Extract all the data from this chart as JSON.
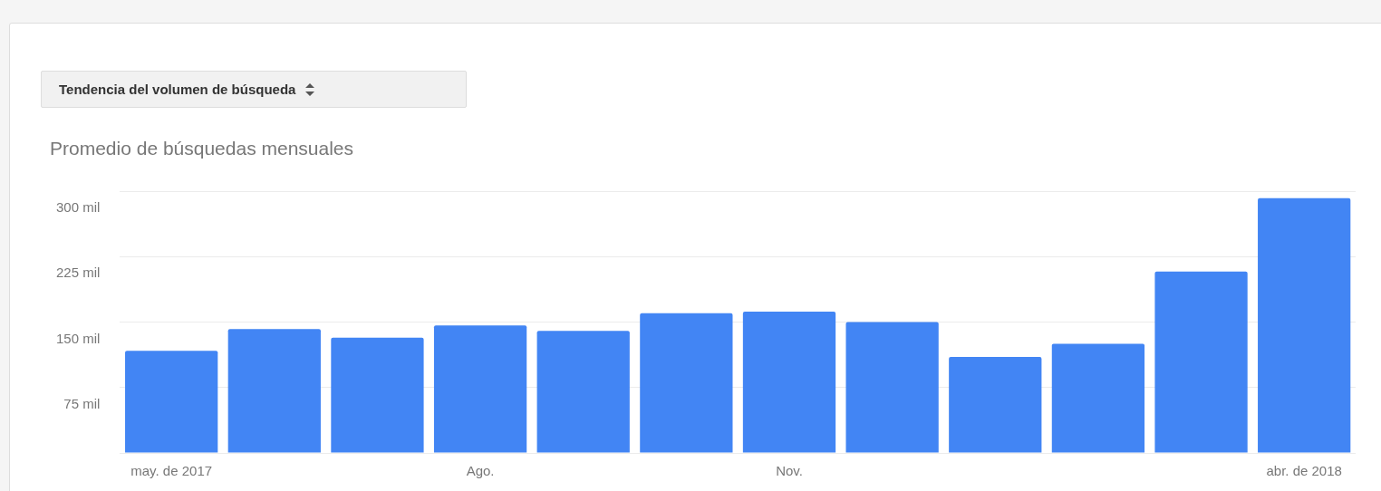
{
  "chart_data": {
    "type": "bar",
    "title": "Tendencia del volumen de búsqueda",
    "subtitle": "Promedio de búsquedas mensuales",
    "categories": [
      "may. de 2017",
      null,
      null,
      "Ago.",
      null,
      null,
      "Nov.",
      null,
      null,
      null,
      null,
      "abr. de 2018"
    ],
    "values": [
      117,
      142,
      132,
      146,
      140,
      160,
      162,
      150,
      110,
      125,
      208,
      292
    ],
    "color": "#4285f4",
    "ylim": [
      0,
      300
    ],
    "yticks": [
      {
        "value": 0,
        "label": null
      },
      {
        "value": 75,
        "label": "75 mil"
      },
      {
        "value": 150,
        "label": "150 mil"
      },
      {
        "value": 225,
        "label": "225 mil"
      },
      {
        "value": 300,
        "label": "300 mil"
      }
    ],
    "grid": "y",
    "legend": false
  }
}
